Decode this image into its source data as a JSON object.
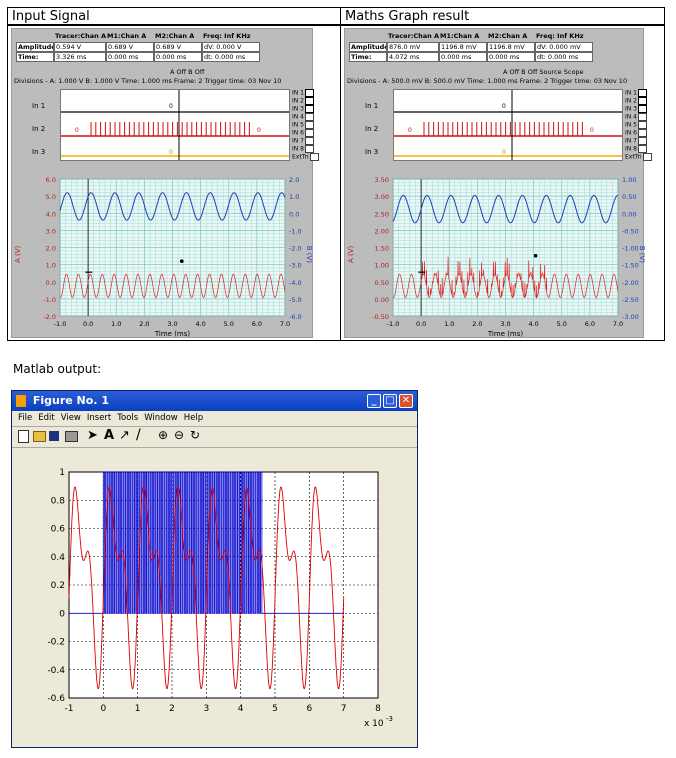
{
  "sections": {
    "left_title": "Input Signal",
    "right_title": "Maths Graph result",
    "matlab_caption": "Matlab output:"
  },
  "left_scope": {
    "table_headers": [
      "Tracer:Chan A",
      "M1:Chan A",
      "M2:Chan A",
      "Freq: Inf KHz"
    ],
    "row_labels": [
      "Amplitude:",
      "Time:"
    ],
    "amplitude": [
      "0.594 V",
      "0.689 V",
      "0.689 V",
      "dV: 0.000 V"
    ],
    "time": [
      "3.326 ms",
      "0.000 ms",
      "0.000 ms",
      "dt: 0.000 ms"
    ],
    "ab_line": "A      Off   B      Off",
    "status_line": "Divisions - A: 1.000 V   B: 1.000 V   Time: 1.000 ms  Frame: 2      Trigger time: 03 Nov 10",
    "in_labels": [
      "In 1",
      "In 2",
      "In 3"
    ],
    "legend": [
      "IN 1",
      "IN 2",
      "IN 3",
      "IN 4",
      "IN 5",
      "IN 6",
      "IN 7",
      "IN 8",
      "ExtTri"
    ],
    "left_ticks": [
      "6.0",
      "5.0",
      "4.0",
      "3.0",
      "2.0",
      "1.0",
      "0.0",
      "-1.0",
      "-2.0"
    ],
    "right_ticks": [
      "2.0",
      "1.0",
      "0.0",
      "-1.0",
      "-2.0",
      "-3.0",
      "-4.0",
      "-5.0",
      "-6.0"
    ],
    "x_ticks": [
      "-1.0",
      "0.0",
      "1.0",
      "2.0",
      "3.0",
      "4.0",
      "5.0",
      "6.0",
      "7.0"
    ],
    "xlabel": "Time (ms)",
    "ylabel_left": "A (V)",
    "ylabel_right": "B (V)"
  },
  "right_scope": {
    "table_headers": [
      "Tracer:Chan A",
      "M1:Chan A",
      "M2:Chan A",
      "Freq: Inf KHz"
    ],
    "row_labels": [
      "Amplitude:",
      "Time:"
    ],
    "amplitude": [
      "876.0 mV",
      "1196.8 mV",
      "1196.8 mV",
      "dV: 0.000 mV"
    ],
    "time": [
      "4.072 ms",
      "0.000 ms",
      "0.000 ms",
      "dt: 0.000 ms"
    ],
    "ab_line": "A      Off   B      Off   Source   Scope",
    "status_line": "Divisions - A: 500.0 mV   B: 500.0 mV   Time: 1.000 ms  Frame: 2      Trigger time: 03 Nov 10",
    "in_labels": [
      "In 1",
      "In 2",
      "In 3"
    ],
    "legend": [
      "IN 1",
      "IN 2",
      "IN 3",
      "IN 4",
      "IN 5",
      "IN 6",
      "IN 7",
      "IN 8",
      "ExtTri"
    ],
    "left_ticks": [
      "3.50",
      "3.00",
      "2.50",
      "2.00",
      "1.50",
      "1.00",
      "0.50",
      "0.00",
      "-0.50"
    ],
    "right_ticks": [
      "1.00",
      "0.50",
      "0.00",
      "-0.50",
      "-1.00",
      "-1.50",
      "-2.00",
      "-2.50",
      "-3.00"
    ],
    "x_ticks": [
      "-1.0",
      "0.0",
      "1.0",
      "2.0",
      "3.0",
      "4.0",
      "5.0",
      "6.0",
      "7.0"
    ],
    "xlabel": "Time (ms)",
    "ylabel_left": "A (V)",
    "ylabel_right": "B (V)"
  },
  "matlab": {
    "title": "Figure No. 1",
    "menu": [
      "File",
      "Edit",
      "View",
      "Insert",
      "Tools",
      "Window",
      "Help"
    ],
    "tools": [
      "new-icon",
      "open-icon",
      "save-icon",
      "print-icon",
      "arrow-icon",
      "text-icon",
      "arrow-line-icon",
      "line-icon",
      "zoom-in-icon",
      "zoom-out-icon",
      "rotate-icon"
    ],
    "x_ticks": [
      "-1",
      "0",
      "1",
      "2",
      "3",
      "4",
      "5",
      "6",
      "7",
      "8"
    ],
    "y_ticks": [
      "1",
      "0.8",
      "0.6",
      "0.4",
      "0.2",
      "0",
      "-0.2",
      "-0.4",
      "-0.6"
    ],
    "x_exponent": "x 10",
    "x_exponent_power": "-3"
  },
  "chart_data": [
    {
      "type": "line",
      "xlim": [
        -1,
        7
      ],
      "ylim": [
        -2,
        6
      ],
      "xlabel": "Time (ms)",
      "ylabel": "A (V)",
      "series": [
        {
          "name": "B",
          "color": "#1f3fb8",
          "description_values": "sine amplitude 1.0 V around 1.0 on B axis, ~8 cycles"
        },
        {
          "name": "A",
          "color": "#e02020",
          "description_values": "sine amplitude 0.8 V around 0.2, ~16 cycles"
        }
      ]
    },
    {
      "type": "line",
      "xlim": [
        -1,
        7
      ],
      "ylim": [
        -0.5,
        3.5
      ],
      "xlabel": "Time (ms)",
      "ylabel": "A (V)",
      "series": [
        {
          "name": "B",
          "color": "#1f3fb8"
        },
        {
          "name": "A",
          "color": "#e02020"
        }
      ]
    },
    {
      "type": "line",
      "xlim": [
        -1,
        8
      ],
      "ylim": [
        -0.6,
        1
      ],
      "grid": true,
      "series": [
        {
          "name": "red",
          "color": "#e00000"
        },
        {
          "name": "blue",
          "color": "#0000cc"
        }
      ]
    }
  ],
  "colors": {
    "scope_bg": "#bcbcbc",
    "plot_bg": "#e8f8f6",
    "grid": "#7fc6c0",
    "red": "#e02020",
    "blue": "#1f3fb8",
    "dig_orange": "#f0b000",
    "xp_title": "#0a3fc2"
  }
}
